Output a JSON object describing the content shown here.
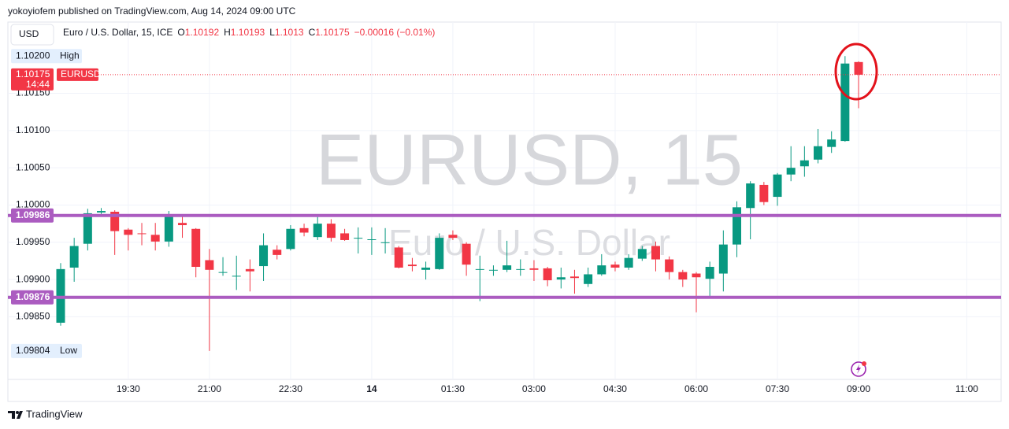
{
  "header": {
    "author_line": "yokoyiofem published on TradingView.com, Aug 14, 2024 09:00 UTC",
    "currency": "USD",
    "instrument": "Euro / U.S. Dollar, 15, ICE",
    "ohlc_labels": [
      "O",
      "H",
      "L",
      "C"
    ],
    "change": "−0.00016 (−0.01%)"
  },
  "footer": {
    "brand": "TradingView"
  },
  "chart_data": {
    "type": "candlestick",
    "watermark": [
      "EURUSD, 15",
      "Euro / U.S. Dollar"
    ],
    "categories": [
      null,
      null,
      null,
      null,
      null,
      "19:30",
      null,
      null,
      null,
      null,
      null,
      "21:00",
      null,
      null,
      null,
      null,
      null,
      "22:30",
      null,
      null,
      null,
      null,
      null,
      "14",
      null,
      null,
      null,
      null,
      null,
      "01:30",
      null,
      null,
      null,
      null,
      null,
      "03:00",
      null,
      null,
      null,
      null,
      null,
      "04:30",
      null,
      null,
      null,
      null,
      null,
      "06:00",
      null,
      null,
      null,
      null,
      null,
      "07:30",
      null,
      null,
      null,
      null,
      null,
      "09:00",
      null,
      null,
      null,
      null,
      null,
      null,
      null,
      "11:00"
    ],
    "open": [
      1.09842,
      1.09916,
      1.09948,
      1.0999,
      1.09991,
      1.09967,
      1.09962,
      1.0996,
      1.09951,
      1.09976,
      1.09968,
      1.09926,
      1.09909,
      1.09904,
      1.09914,
      1.09918,
      1.0994,
      1.09941,
      1.09969,
      1.09957,
      1.09975,
      1.09962,
      1.09955,
      1.09953,
      1.0995,
      1.09943,
      1.0992,
      1.09913,
      1.09914,
      1.0996,
      1.09948,
      1.09913,
      1.09912,
      1.09913,
      1.09913,
      1.09915,
      1.09915,
      1.099,
      1.09904,
      1.09894,
      1.09907,
      1.0992,
      1.09916,
      1.09928,
      1.09945,
      1.09927,
      1.0991,
      1.09908,
      1.09901,
      1.09908,
      1.09947,
      1.09996,
      1.10027,
      1.10011,
      1.10041,
      1.10052,
      1.10061,
      1.10078,
      1.10086,
      1.10192,
      null,
      null,
      null,
      null,
      null,
      null,
      null,
      null
    ],
    "high": [
      1.09922,
      1.09956,
      1.09995,
      1.09996,
      1.09993,
      1.09969,
      1.09976,
      1.09976,
      1.09992,
      1.09987,
      1.09969,
      1.09941,
      1.0993,
      1.09932,
      1.09927,
      1.09962,
      1.09946,
      1.09973,
      1.09975,
      1.09984,
      1.09981,
      1.09968,
      1.0997,
      1.0997,
      1.09969,
      1.09945,
      1.09929,
      1.09924,
      1.09962,
      1.09966,
      1.0995,
      1.09932,
      1.09919,
      1.09952,
      1.09927,
      1.09926,
      1.09917,
      1.09916,
      1.09913,
      1.09916,
      1.09934,
      1.09924,
      1.09934,
      1.09945,
      1.09951,
      1.09931,
      1.09913,
      1.0991,
      1.09924,
      1.09966,
      1.10005,
      1.10032,
      1.10031,
      1.10043,
      1.10079,
      1.10079,
      1.10102,
      1.10099,
      1.102,
      1.10193,
      null,
      null,
      null,
      null,
      null,
      null,
      null,
      null
    ],
    "low": [
      1.09838,
      1.09897,
      1.09939,
      1.09988,
      1.09933,
      1.09939,
      1.09946,
      1.09939,
      1.09944,
      1.09956,
      1.09903,
      1.09804,
      1.09905,
      1.09886,
      1.09884,
      1.09898,
      1.09927,
      1.09939,
      1.09958,
      1.09953,
      1.09951,
      1.09952,
      1.09935,
      1.09933,
      1.09935,
      1.09915,
      1.09911,
      1.099,
      1.09913,
      1.09953,
      1.09905,
      1.09871,
      1.09905,
      1.0991,
      1.09905,
      1.09898,
      1.09891,
      1.09888,
      1.09881,
      1.0989,
      1.09905,
      1.09911,
      1.09913,
      1.09925,
      1.09911,
      1.099,
      1.0989,
      1.09856,
      1.09878,
      1.09884,
      1.0993,
      1.09954,
      1.1,
      1.09999,
      1.10032,
      1.10038,
      1.10056,
      1.1007,
      1.10085,
      1.1013,
      null,
      null,
      null,
      null,
      null,
      null,
      null,
      null
    ],
    "close": [
      1.09914,
      1.09945,
      1.09989,
      1.09992,
      1.09965,
      1.0996,
      1.09961,
      1.09951,
      1.09985,
      1.09973,
      1.09917,
      1.09913,
      1.0991,
      1.09905,
      1.09911,
      1.09946,
      1.09933,
      1.09968,
      1.09963,
      1.09975,
      1.09956,
      1.09953,
      1.09956,
      1.09954,
      1.0995,
      1.09916,
      1.09918,
      1.09916,
      1.09956,
      1.09956,
      1.0992,
      1.09914,
      1.09913,
      1.09919,
      1.09914,
      1.09913,
      1.09899,
      1.09903,
      1.09902,
      1.09907,
      1.09919,
      1.09916,
      1.09929,
      1.09941,
      1.09927,
      1.0991,
      1.099,
      1.09903,
      1.09917,
      1.09947,
      1.09997,
      1.10029,
      1.10004,
      1.10041,
      1.1005,
      1.1006,
      1.10079,
      1.10088,
      1.1019,
      1.10175,
      null,
      null,
      null,
      null,
      null,
      null,
      null,
      null
    ],
    "up_color": "#089981",
    "down_color": "#f23645",
    "ylim": [
      1.09768,
      1.10214
    ],
    "yticks": [
      {
        "value": 1.0985,
        "label": "1.09850"
      },
      {
        "value": 1.099,
        "label": "1.09900"
      },
      {
        "value": 1.0995,
        "label": "1.09950"
      },
      {
        "value": 1.1,
        "label": "1.10000"
      },
      {
        "value": 1.1005,
        "label": "1.10050"
      },
      {
        "value": 1.101,
        "label": "1.10100"
      },
      {
        "value": 1.1015,
        "label": "1.10150"
      }
    ],
    "grid": true,
    "hlines": [
      {
        "value": 1.09986,
        "color": "#ab5cc0"
      },
      {
        "value": 1.09876,
        "color": "#ab5cc0"
      }
    ],
    "high_marker": {
      "value": 1.102,
      "label": "1.10200",
      "text": "High"
    },
    "low_marker": {
      "value": 1.09804,
      "label": "1.09804",
      "text": "Low"
    },
    "symbol": "EURUSD",
    "countdown": "14:44"
  }
}
